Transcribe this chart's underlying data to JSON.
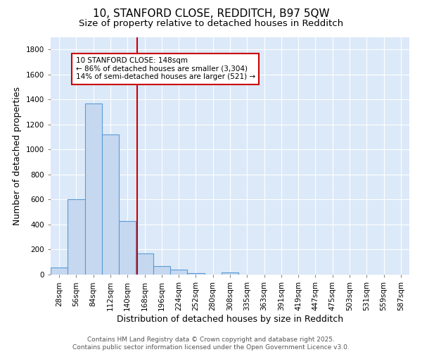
{
  "title1": "10, STANFORD CLOSE, REDDITCH, B97 5QW",
  "title2": "Size of property relative to detached houses in Redditch",
  "xlabel": "Distribution of detached houses by size in Redditch",
  "ylabel": "Number of detached properties",
  "bin_labels": [
    "28sqm",
    "56sqm",
    "84sqm",
    "112sqm",
    "140sqm",
    "168sqm",
    "196sqm",
    "224sqm",
    "252sqm",
    "280sqm",
    "308sqm",
    "335sqm",
    "363sqm",
    "391sqm",
    "419sqm",
    "447sqm",
    "475sqm",
    "503sqm",
    "531sqm",
    "559sqm",
    "587sqm"
  ],
  "bar_heights": [
    55,
    600,
    1370,
    1120,
    430,
    170,
    65,
    40,
    10,
    0,
    15,
    0,
    0,
    0,
    0,
    0,
    0,
    0,
    0,
    0,
    0
  ],
  "bar_color": "#c5d8f0",
  "bar_edge_color": "#5b9bd5",
  "vline_x_index": 4.57,
  "vline_color": "#cc0000",
  "annotation_text": "10 STANFORD CLOSE: 148sqm\n← 86% of detached houses are smaller (3,304)\n14% of semi-detached houses are larger (521) →",
  "annotation_box_color": "white",
  "annotation_box_edge_color": "#cc0000",
  "ylim": [
    0,
    1900
  ],
  "yticks": [
    0,
    200,
    400,
    600,
    800,
    1000,
    1200,
    1400,
    1600,
    1800
  ],
  "background_color": "#dce9f8",
  "grid_color": "white",
  "footer": "Contains HM Land Registry data © Crown copyright and database right 2025.\nContains public sector information licensed under the Open Government Licence v3.0.",
  "title_fontsize": 11,
  "subtitle_fontsize": 9.5,
  "axis_label_fontsize": 9,
  "tick_fontsize": 7.5,
  "footer_fontsize": 6.5,
  "annot_fontsize": 7.5
}
